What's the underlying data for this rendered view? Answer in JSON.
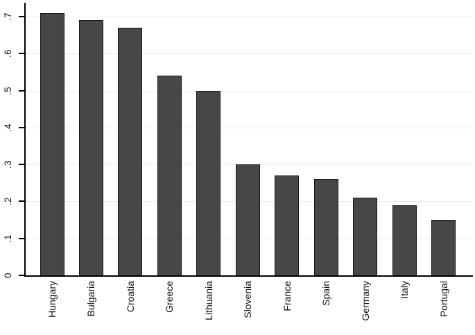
{
  "chart_data": {
    "type": "bar",
    "title": "",
    "xlabel": "",
    "ylabel": "",
    "categories": [
      "Hungary",
      "Bulgaria",
      "Croatia",
      "Greece",
      "Lithuania",
      "Slovenia",
      "France",
      "Spain",
      "Germany",
      "Italy",
      "Portugal"
    ],
    "values": [
      0.71,
      0.69,
      0.67,
      0.54,
      0.5,
      0.3,
      0.27,
      0.26,
      0.21,
      0.19,
      0.15
    ],
    "ylim": [
      0,
      0.74
    ],
    "yticks": [
      0,
      0.1,
      0.2,
      0.3,
      0.4,
      0.5,
      0.6,
      0.7
    ],
    "ytick_labels": [
      "0",
      ".1",
      ".2",
      ".3",
      ".4",
      ".5",
      ".6",
      ".7"
    ],
    "grid": true,
    "legend": false,
    "tick_label_rotation_deg": 90,
    "category_label_rotation_deg": 90,
    "bar_fill_color": "#474747",
    "bar_border_color": "#141414",
    "gridline_color": "#e4eef1",
    "axis_color": "#000000",
    "background_color": "#ffffff"
  }
}
